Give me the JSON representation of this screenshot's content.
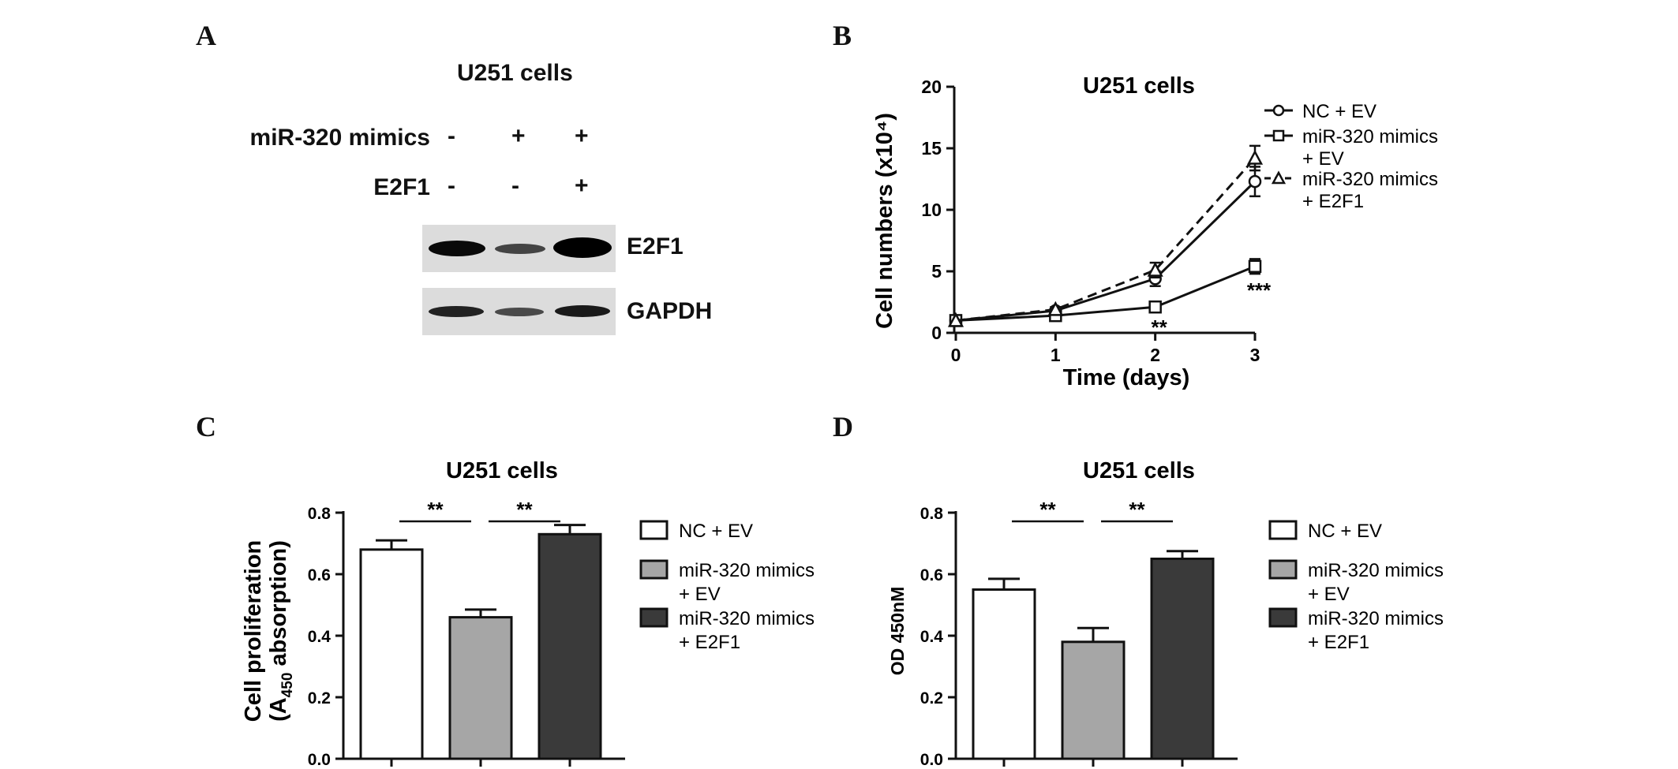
{
  "panels": {
    "a": "A",
    "b": "B",
    "c": "C",
    "d": "D"
  },
  "blot": {
    "title": "U251 cells",
    "rows": [
      {
        "label": "miR-320 mimics",
        "signs": [
          "-",
          "+",
          "+"
        ]
      },
      {
        "label": "E2F1",
        "signs": [
          "-",
          "-",
          "+"
        ]
      }
    ],
    "band_labels": [
      "E2F1",
      "GAPDH"
    ]
  },
  "chart_data": [
    {
      "type": "line",
      "title": "U251 cells",
      "xlabel": "Time (days)",
      "ylabel": "Cell numbers (x10⁴)",
      "x": [
        0,
        1,
        2,
        3
      ],
      "xticks": [
        "0",
        "1",
        "2",
        "3"
      ],
      "yticks": [
        "0",
        "5",
        "10",
        "15",
        "20"
      ],
      "ylim": [
        0,
        20
      ],
      "series": [
        {
          "name": "NC + EV",
          "marker": "circle",
          "dashed": false,
          "values": [
            1.0,
            1.8,
            4.4,
            12.3
          ],
          "errors": [
            0.1,
            0.2,
            0.6,
            1.2
          ]
        },
        {
          "name": "miR-320 mimics + EV",
          "marker": "square",
          "dashed": false,
          "values": [
            1.0,
            1.4,
            2.1,
            5.4
          ],
          "errors": [
            0.1,
            0.1,
            0.3,
            0.6
          ]
        },
        {
          "name": "miR-320 mimics + E2F1",
          "marker": "triangle",
          "dashed": true,
          "values": [
            1.0,
            1.9,
            5.1,
            14.2
          ],
          "errors": [
            0.1,
            0.2,
            0.6,
            1.0
          ]
        }
      ],
      "annotations": [
        {
          "x": 2,
          "text": "**"
        },
        {
          "x": 3,
          "text": "***"
        }
      ],
      "legend": "top-right"
    },
    {
      "type": "bar",
      "title": "U251 cells",
      "ylabel_line1": "Cell proliferation",
      "ylabel_line2_pre": "(A",
      "ylabel_line2_sub": "450",
      "ylabel_line2_post": " absorption)",
      "categories": [
        "NC + EV",
        "miR-320 mimics + EV",
        "miR-320 mimics + E2F1"
      ],
      "values": [
        0.68,
        0.46,
        0.73
      ],
      "errors": [
        0.03,
        0.025,
        0.03
      ],
      "colors": [
        "#ffffff",
        "#a6a6a6",
        "#3a3a3a"
      ],
      "yticks": [
        "0.0",
        "0.2",
        "0.4",
        "0.6",
        "0.8"
      ],
      "ylim": [
        0,
        0.8
      ],
      "significance": [
        {
          "from": 0,
          "to": 1,
          "text": "**"
        },
        {
          "from": 1,
          "to": 2,
          "text": "**"
        }
      ],
      "legend_lines": [
        [
          "NC + EV"
        ],
        [
          "miR-320 mimics",
          "+ EV"
        ],
        [
          "miR-320 mimics",
          "+ E2F1"
        ]
      ],
      "legend": "right"
    },
    {
      "type": "bar",
      "title": "U251 cells",
      "ylabel": "OD 450nM",
      "categories": [
        "NC + EV",
        "miR-320 mimics + EV",
        "miR-320 mimics + E2F1"
      ],
      "values": [
        0.55,
        0.38,
        0.65
      ],
      "errors": [
        0.035,
        0.045,
        0.025
      ],
      "colors": [
        "#ffffff",
        "#a6a6a6",
        "#3a3a3a"
      ],
      "yticks": [
        "0.0",
        "0.2",
        "0.4",
        "0.6",
        "0.8"
      ],
      "ylim": [
        0,
        0.8
      ],
      "significance": [
        {
          "from": 0,
          "to": 1,
          "text": "**"
        },
        {
          "from": 1,
          "to": 2,
          "text": "**"
        }
      ],
      "legend_lines": [
        [
          "NC + EV"
        ],
        [
          "miR-320 mimics",
          "+ EV"
        ],
        [
          "miR-320 mimics",
          "+ E2F1"
        ]
      ],
      "legend": "right"
    }
  ]
}
